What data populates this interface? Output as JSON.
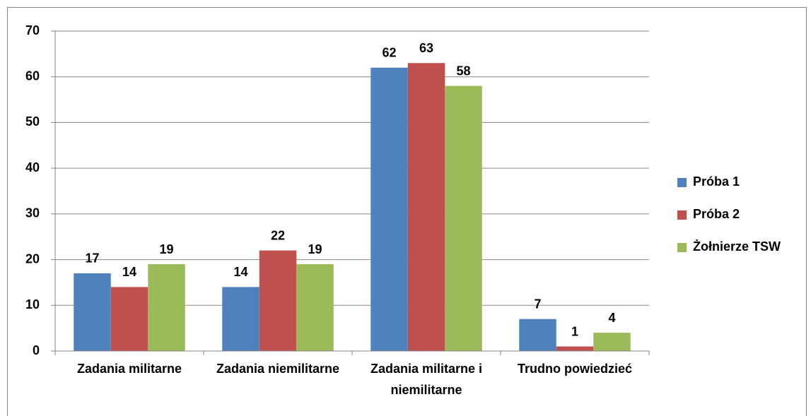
{
  "chart_data": {
    "type": "bar",
    "categories": [
      "Zadania militarne",
      "Zadania niemilitarne",
      "Zadania militarne i niemilitarne",
      "Trudno powiedzieć"
    ],
    "series": [
      {
        "name": "Próba 1",
        "color": "#4f81bd",
        "values": [
          17,
          14,
          62,
          7
        ]
      },
      {
        "name": "Próba 2",
        "color": "#c0504d",
        "values": [
          14,
          22,
          63,
          1
        ]
      },
      {
        "name": "Żołnierze TSW",
        "color": "#9bbb59",
        "values": [
          19,
          19,
          58,
          4
        ]
      }
    ],
    "ylim": [
      0,
      70
    ],
    "yticks": [
      0,
      10,
      20,
      30,
      40,
      50,
      60,
      70
    ],
    "grid": true,
    "legend": "right"
  }
}
